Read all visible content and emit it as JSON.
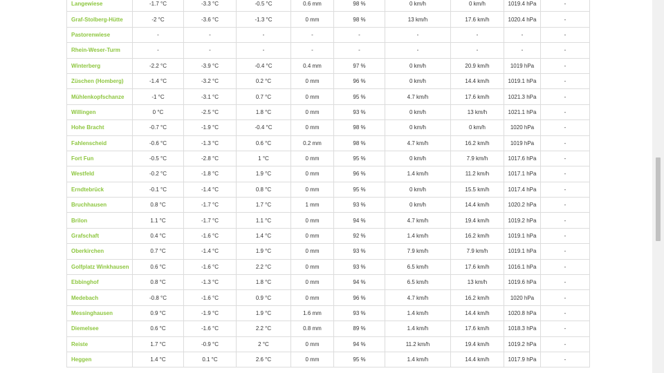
{
  "rows": [
    [
      "Langewiese",
      "-1.7 °C",
      "-3.3 °C",
      "-0.5 °C",
      "0.6 mm",
      "98 %",
      "0 km/h",
      "0 km/h",
      "1019.4 hPa",
      "-"
    ],
    [
      "Graf-Stolberg-Hütte",
      "-2 °C",
      "-3.6 °C",
      "-1.3 °C",
      "0 mm",
      "98 %",
      "13 km/h",
      "17.6 km/h",
      "1020.4 hPa",
      "-"
    ],
    [
      "Pastorenwiese",
      "-",
      "-",
      "-",
      "-",
      "-",
      "-",
      "-",
      "-",
      "-"
    ],
    [
      "Rhein-Weser-Turm",
      "-",
      "-",
      "-",
      "-",
      "-",
      "-",
      "-",
      "-",
      "-"
    ],
    [
      "Winterberg",
      "-2.2 °C",
      "-3.9 °C",
      "-0.4 °C",
      "0.4 mm",
      "97 %",
      "0 km/h",
      "20.9 km/h",
      "1019 hPa",
      "-"
    ],
    [
      "Züschen (Homberg)",
      "-1.4 °C",
      "-3.2 °C",
      "0.2 °C",
      "0 mm",
      "96 %",
      "0 km/h",
      "14.4 km/h",
      "1019.1 hPa",
      "-"
    ],
    [
      "Mühlenkopfschanze",
      "-1 °C",
      "-3.1 °C",
      "0.7 °C",
      "0 mm",
      "95 %",
      "4.7 km/h",
      "17.6 km/h",
      "1021.3 hPa",
      "-"
    ],
    [
      "Willingen",
      "0 °C",
      "-2.5 °C",
      "1.8 °C",
      "0 mm",
      "93 %",
      "0 km/h",
      "13 km/h",
      "1021.1 hPa",
      "-"
    ],
    [
      "Hohe Bracht",
      "-0.7 °C",
      "-1.9 °C",
      "-0.4 °C",
      "0 mm",
      "98 %",
      "0 km/h",
      "0 km/h",
      "1020 hPa",
      "-"
    ],
    [
      "Fahlenscheid",
      "-0.6 °C",
      "-1.3 °C",
      "0.6 °C",
      "0.2 mm",
      "98 %",
      "4.7 km/h",
      "16.2 km/h",
      "1019 hPa",
      "-"
    ],
    [
      "Fort Fun",
      "-0.5 °C",
      "-2.8 °C",
      "1 °C",
      "0 mm",
      "95 %",
      "0 km/h",
      "7.9 km/h",
      "1017.6 hPa",
      "-"
    ],
    [
      "Westfeld",
      "-0.2 °C",
      "-1.8 °C",
      "1.9 °C",
      "0 mm",
      "96 %",
      "1.4 km/h",
      "11.2 km/h",
      "1017.1 hPa",
      "-"
    ],
    [
      "Erndtebrück",
      "-0.1 °C",
      "-1.4 °C",
      "0.8 °C",
      "0 mm",
      "95 %",
      "0 km/h",
      "15.5 km/h",
      "1017.4 hPa",
      "-"
    ],
    [
      "Bruchhausen",
      "0.8 °C",
      "-1.7 °C",
      "1.7 °C",
      "1 mm",
      "93 %",
      "0 km/h",
      "14.4 km/h",
      "1020.2 hPa",
      "-"
    ],
    [
      "Brilon",
      "1.1 °C",
      "-1.7 °C",
      "1.1 °C",
      "0 mm",
      "94 %",
      "4.7 km/h",
      "19.4 km/h",
      "1019.2 hPa",
      "-"
    ],
    [
      "Grafschaft",
      "0.4 °C",
      "-1.6 °C",
      "1.4 °C",
      "0 mm",
      "92 %",
      "1.4 km/h",
      "16.2 km/h",
      "1019.1 hPa",
      "-"
    ],
    [
      "Oberkirchen",
      "0.7 °C",
      "-1.4 °C",
      "1.9 °C",
      "0 mm",
      "93 %",
      "7.9 km/h",
      "7.9 km/h",
      "1019.1 hPa",
      "-"
    ],
    [
      "Golfplatz Winkhausen",
      "0.6 °C",
      "-1.6 °C",
      "2.2 °C",
      "0 mm",
      "93 %",
      "6.5 km/h",
      "17.6 km/h",
      "1016.1 hPa",
      "-"
    ],
    [
      "Ebbinghof",
      "0.8 °C",
      "-1.3 °C",
      "1.8 °C",
      "0 mm",
      "94 %",
      "6.5 km/h",
      "13 km/h",
      "1019.6 hPa",
      "-"
    ],
    [
      "Medebach",
      "-0.8 °C",
      "-1.6 °C",
      "0.9 °C",
      "0 mm",
      "96 %",
      "4.7 km/h",
      "16.2 km/h",
      "1020 hPa",
      "-"
    ],
    [
      "Messinghausen",
      "0.9 °C",
      "-1.9 °C",
      "1.9 °C",
      "1.6 mm",
      "93 %",
      "1.4 km/h",
      "14.4 km/h",
      "1020.8 hPa",
      "-"
    ],
    [
      "Diemelsee",
      "0.6 °C",
      "-1.6 °C",
      "2.2 °C",
      "0.8 mm",
      "89 %",
      "1.4 km/h",
      "17.6 km/h",
      "1018.3 hPa",
      "-"
    ],
    [
      "Reiste",
      "1.7 °C",
      "-0.9 °C",
      "2 °C",
      "0 mm",
      "94 %",
      "11.2 km/h",
      "19.4 km/h",
      "1019.2 hPa",
      "-"
    ],
    [
      "Heggen",
      "1.4 °C",
      "0.1 °C",
      "2.6 °C",
      "0 mm",
      "95 %",
      "1.4 km/h",
      "14.4 km/h",
      "1017.9 hPa",
      "-"
    ]
  ]
}
